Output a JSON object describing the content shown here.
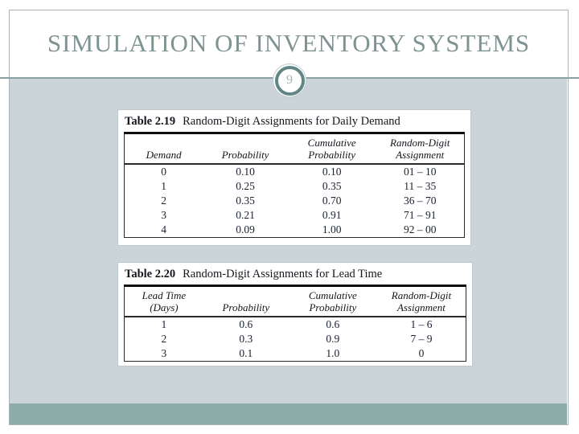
{
  "slide": {
    "title": "SIMULATION OF INVENTORY SYSTEMS",
    "page_number": "9"
  },
  "colors": {
    "content_background": "#cbd5d9",
    "bottom_bar": "#8caba9",
    "title_text": "#7e9392",
    "divider_line": "#8aa1a1",
    "circle_ring": "#628686",
    "frame_border": "#a9b4b6"
  },
  "tables": [
    {
      "label": "Table 2.19",
      "caption": "Random-Digit Assignments for Daily Demand",
      "columns": [
        [
          "Demand"
        ],
        [
          "Probability"
        ],
        [
          "Cumulative",
          "Probability"
        ],
        [
          "Random-Digit",
          "Assignment"
        ]
      ],
      "rows": [
        [
          "0",
          "0.10",
          "0.10",
          "01 – 10"
        ],
        [
          "1",
          "0.25",
          "0.35",
          "11 – 35"
        ],
        [
          "2",
          "0.35",
          "0.70",
          "36 – 70"
        ],
        [
          "3",
          "0.21",
          "0.91",
          "71 – 91"
        ],
        [
          "4",
          "0.09",
          "1.00",
          "92 – 00"
        ]
      ]
    },
    {
      "label": "Table 2.20",
      "caption": "Random-Digit Assignments for Lead Time",
      "columns": [
        [
          "Lead Time",
          "(Days)"
        ],
        [
          "Probability"
        ],
        [
          "Cumulative",
          "Probability"
        ],
        [
          "Random-Digit",
          "Assignment"
        ]
      ],
      "rows": [
        [
          "1",
          "0.6",
          "0.6",
          "1 – 6"
        ],
        [
          "2",
          "0.3",
          "0.9",
          "7 – 9"
        ],
        [
          "3",
          "0.1",
          "1.0",
          "0"
        ]
      ]
    }
  ]
}
